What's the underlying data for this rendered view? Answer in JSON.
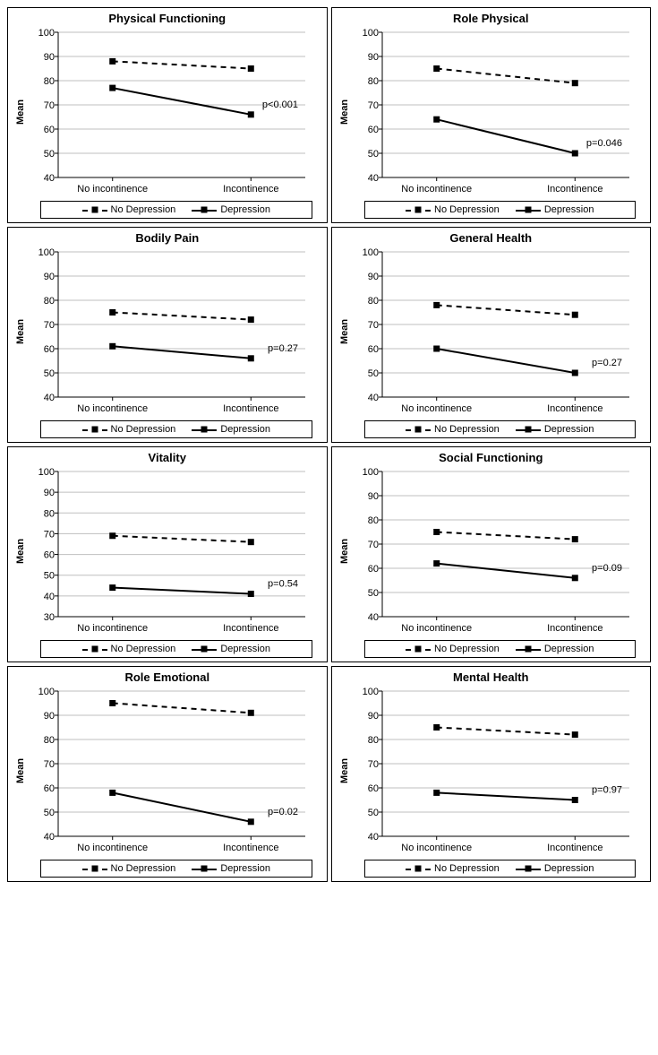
{
  "global": {
    "ylabel": "Mean",
    "xcats": [
      "No incontinence",
      "Incontinence"
    ],
    "legend": {
      "nodep": "No Depression",
      "dep": "Depression"
    },
    "colors": {
      "line": "#000000",
      "grid": "#bfbfbf",
      "bg": "#ffffff"
    },
    "marker_size": 7,
    "line_width": 2
  },
  "panels": [
    {
      "title": "Physical  Functioning",
      "ylim": [
        40,
        100
      ],
      "ytick_step": 10,
      "nodep": [
        88,
        85
      ],
      "dep": [
        77,
        66
      ],
      "pvalue": "p<0.001"
    },
    {
      "title": "Role Physical",
      "ylim": [
        40,
        100
      ],
      "ytick_step": 10,
      "nodep": [
        85,
        79
      ],
      "dep": [
        64,
        50
      ],
      "pvalue": "p=0.046"
    },
    {
      "title": "Bodily Pain",
      "ylim": [
        40,
        100
      ],
      "ytick_step": 10,
      "nodep": [
        75,
        72
      ],
      "dep": [
        61,
        56
      ],
      "pvalue": "p=0.27"
    },
    {
      "title": "General Health",
      "ylim": [
        40,
        100
      ],
      "ytick_step": 10,
      "nodep": [
        78,
        74
      ],
      "dep": [
        60,
        50
      ],
      "pvalue": "p=0.27"
    },
    {
      "title": "Vitality",
      "ylim": [
        30,
        100
      ],
      "ytick_step": 10,
      "nodep": [
        69,
        66
      ],
      "dep": [
        44,
        41
      ],
      "pvalue": "p=0.54"
    },
    {
      "title": "Social Functioning",
      "ylim": [
        40,
        100
      ],
      "ytick_step": 10,
      "nodep": [
        75,
        72
      ],
      "dep": [
        62,
        56
      ],
      "pvalue": "p=0.09"
    },
    {
      "title": "Role Emotional",
      "ylim": [
        40,
        100
      ],
      "ytick_step": 10,
      "nodep": [
        95,
        91
      ],
      "dep": [
        58,
        46
      ],
      "pvalue": "p=0.02"
    },
    {
      "title": "Mental Health",
      "ylim": [
        40,
        100
      ],
      "ytick_step": 10,
      "nodep": [
        85,
        82
      ],
      "dep": [
        58,
        55
      ],
      "pvalue": "p=0.97"
    }
  ]
}
